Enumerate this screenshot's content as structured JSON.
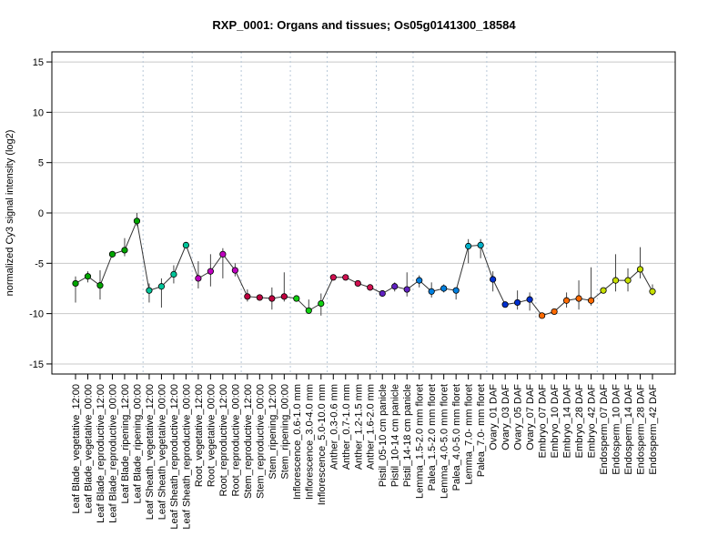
{
  "chart_data": {
    "type": "line",
    "title": "RXP_0001: Organs and tissues; Os05g0141300_18584",
    "xlabel": "",
    "ylabel": "normalized Cy3 signal intensity (log2)",
    "ylim": [
      -16,
      16
    ],
    "yticks": [
      -15,
      -10,
      -5,
      0,
      5,
      10,
      15
    ],
    "grid": true,
    "categories": [
      "Leaf Blade_vegetative_12:00",
      "Leaf Blade_vegetative_00:00",
      "Leaf Blade_reproductive_12:00",
      "Leaf Blade_reproductive_00:00",
      "Leaf Blade_ripening_12:00",
      "Leaf Blade_ripening_00:00",
      "Leaf Sheath_vegetative_12:00",
      "Leaf Sheath_vegetative_00:00",
      "Leaf Sheath_reproductive_12:00",
      "Leaf Sheath_reproductive_00:00",
      "Root_vegetative_12:00",
      "Root_vegetative_00:00",
      "Root_reproductive_12:00",
      "Root_reproductive_00:00",
      "Stem_reproductive_12:00",
      "Stem_reproductive_00:00",
      "Stem_ripening_12:00",
      "Stem_ripening_00:00",
      "Inflorescence_0.6-1.0 mm",
      "Inflorescence_3.0-4.0 mm",
      "Inflorescence_5.0-10.0 mm",
      "Anther_0.3-0.6 mm",
      "Anther_0.7-1.0 mm",
      "Anther_1.2-1.5 mm",
      "Anther_1.6-2.0 mm",
      "Pistil_05-10 cm panicle",
      "Pistil_10-14 cm panicle",
      "Pistil_14-18 cm panicle",
      "Lemma_1.5-2.0 mm floret",
      "Palea_1.5-2.0 mm floret",
      "Lemma_4.0-5.0 mm floret",
      "Palea_4.0-5.0 mm floret",
      "Lemma_7.0- mm floret",
      "Palea_7.0- mm floret",
      "Ovary_01 DAF",
      "Ovary_03 DAF",
      "Ovary_05 DAF",
      "Ovary_07 DAF",
      "Embryo_07 DAF",
      "Embryo_10 DAF",
      "Embryo_14 DAF",
      "Embryo_28 DAF",
      "Embryo_42 DAF",
      "Endosperm_07 DAF",
      "Endosperm_10 DAF",
      "Endosperm_14 DAF",
      "Endosperm_28 DAF",
      "Endosperm_42 DAF"
    ],
    "values": [
      -7.0,
      -6.3,
      -7.2,
      -4.1,
      -3.7,
      -0.8,
      -7.7,
      -7.3,
      -6.1,
      -3.2,
      -6.5,
      -5.8,
      -4.1,
      -5.7,
      -8.3,
      -8.4,
      -8.5,
      -8.3,
      -8.5,
      -9.7,
      -9.0,
      -6.4,
      -6.4,
      -7.0,
      -7.4,
      -8.0,
      -7.3,
      -7.6,
      -6.7,
      -7.8,
      -7.5,
      -7.7,
      -3.3,
      -3.2,
      -6.6,
      -9.1,
      -8.9,
      -8.6,
      -10.2,
      -9.8,
      -8.7,
      -8.5,
      -8.7,
      -7.7,
      -6.7,
      -6.7,
      -5.6,
      -7.8
    ],
    "error_low": [
      -8.9,
      -6.9,
      -8.6,
      -4.4,
      -4.3,
      -1.3,
      -8.9,
      -9.4,
      -7.0,
      -3.4,
      -7.5,
      -7.3,
      -6.5,
      -6.3,
      -8.8,
      -8.6,
      -9.6,
      -8.8,
      -8.7,
      -10.0,
      -10.2,
      -6.6,
      -6.6,
      -7.2,
      -7.6,
      -8.2,
      -7.8,
      -8.3,
      -7.4,
      -8.4,
      -7.9,
      -8.6,
      -5.0,
      -4.5,
      -7.8,
      -9.3,
      -9.6,
      -9.7,
      -10.4,
      -10.0,
      -9.4,
      -9.6,
      -9.2,
      -8.0,
      -7.8,
      -7.8,
      -6.5,
      -8.2
    ],
    "error_high": [
      -6.3,
      -5.8,
      -5.7,
      -3.8,
      -2.5,
      0.0,
      -7.0,
      -6.5,
      -5.2,
      -2.9,
      -4.8,
      -4.1,
      -3.5,
      -5.0,
      -7.6,
      -8.2,
      -7.4,
      -5.9,
      -8.3,
      -8.6,
      -8.0,
      -6.2,
      -6.2,
      -6.8,
      -7.2,
      -7.7,
      -6.9,
      -5.9,
      -6.2,
      -6.9,
      -7.1,
      -7.5,
      -2.6,
      -2.6,
      -5.8,
      -8.9,
      -7.7,
      -7.9,
      -10.0,
      -9.6,
      -7.9,
      -6.7,
      -5.4,
      -7.4,
      -4.1,
      -5.5,
      -3.4,
      -7.1
    ],
    "colors": [
      "#00A600",
      "#00A600",
      "#00A600",
      "#00A600",
      "#00A600",
      "#00A600",
      "#00C59A",
      "#00C59A",
      "#00C59A",
      "#00C59A",
      "#C000C0",
      "#C000C0",
      "#C000C0",
      "#C000C0",
      "#C00040",
      "#C00040",
      "#C00040",
      "#C00040",
      "#10D010",
      "#10D010",
      "#10D010",
      "#D01050",
      "#D01050",
      "#D01050",
      "#D01050",
      "#6020C0",
      "#6020C0",
      "#6020C0",
      "#0080E0",
      "#0080E0",
      "#0080E0",
      "#0080E0",
      "#00B0C8",
      "#00B0C8",
      "#0030D0",
      "#0030D0",
      "#0030D0",
      "#0030D0",
      "#FF6A00",
      "#FF6A00",
      "#FF6A00",
      "#FF6A00",
      "#FF6A00",
      "#C8E000",
      "#C8E000",
      "#C8E000",
      "#C8E000",
      "#C8E000"
    ],
    "group_separators_after": [
      5,
      9,
      13,
      17,
      20,
      24,
      27,
      33,
      37,
      42
    ]
  }
}
